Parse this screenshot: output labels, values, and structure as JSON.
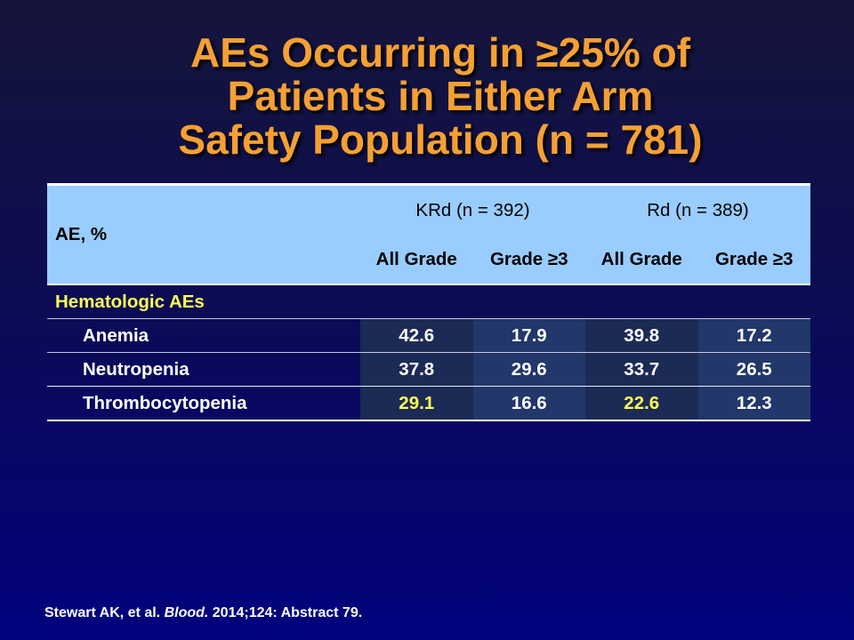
{
  "slide": {
    "title_lines": [
      "AEs Occurring in ≥25% of",
      "Patients in Either Arm",
      "Safety Population (n = 781)"
    ],
    "citation": {
      "authors": "Stewart AK, et al.",
      "journal": "Blood.",
      "details": "2014;124: Abstract 79."
    }
  },
  "table": {
    "row_header": "AE, %",
    "arms": [
      {
        "label": "KRd (n = 392)",
        "grades": [
          "All Grade",
          "Grade ≥3"
        ]
      },
      {
        "label": "Rd (n = 389)",
        "grades": [
          "All Grade",
          "Grade ≥3"
        ]
      }
    ],
    "section_label": "Hematologic AEs",
    "rows": [
      {
        "label": "Anemia",
        "cells": [
          {
            "value": "42.6",
            "highlight": false
          },
          {
            "value": "17.9",
            "highlight": false
          },
          {
            "value": "39.8",
            "highlight": false
          },
          {
            "value": "17.2",
            "highlight": false
          }
        ]
      },
      {
        "label": "Neutropenia",
        "cells": [
          {
            "value": "37.8",
            "highlight": false
          },
          {
            "value": "29.6",
            "highlight": false
          },
          {
            "value": "33.7",
            "highlight": false
          },
          {
            "value": "26.5",
            "highlight": false
          }
        ]
      },
      {
        "label": "Thrombocytopenia",
        "cells": [
          {
            "value": "29.1",
            "highlight": true
          },
          {
            "value": "16.6",
            "highlight": false
          },
          {
            "value": "22.6",
            "highlight": true
          },
          {
            "value": "12.3",
            "highlight": false
          }
        ]
      }
    ]
  },
  "colors": {
    "background_top": "#15153b",
    "background_bottom": "#02027e",
    "title": "#f5a033",
    "header_background": "#99ccff",
    "header_text": "#000000",
    "body_text": "#ffffff",
    "highlight": "#ffff55",
    "cell_dark": "#1c2a56",
    "cell_light": "#22376a"
  }
}
